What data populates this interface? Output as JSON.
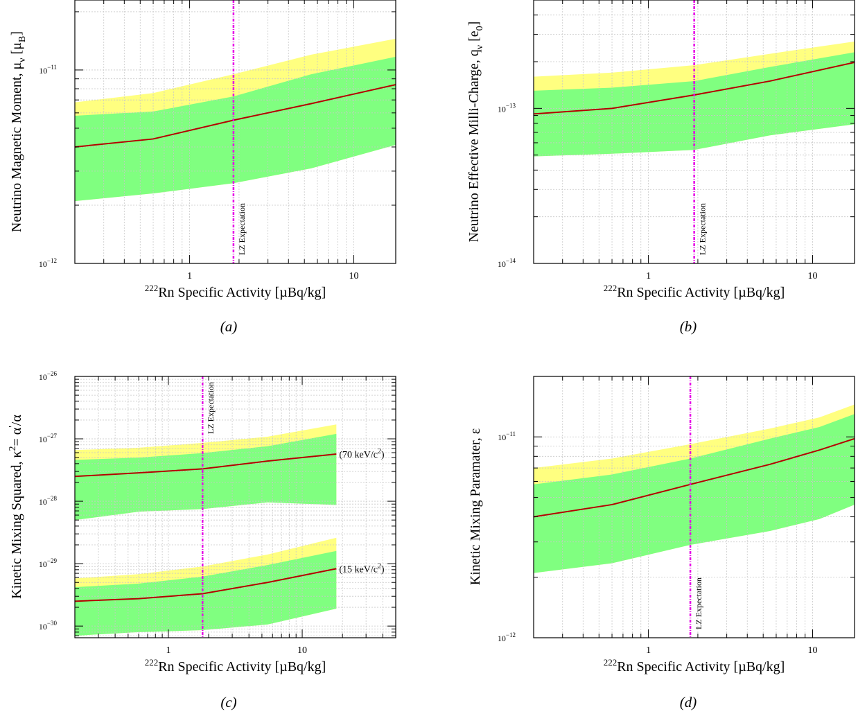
{
  "colors": {
    "yellow_band": "#ffff80",
    "green_band": "#80ff80",
    "median": "#b40000",
    "lz_line": "#e600e6",
    "grid": "#c8c8c8"
  },
  "chart_data": [
    {
      "id": "a",
      "type": "area",
      "caption": "(a)",
      "xlabel_sup": "222",
      "xlabel": "Rn Specific Activity [µBq/kg]",
      "ylabel": "Neutrino Magnetic Moment, μ",
      "ylabel_sub": "ν",
      "ylabel_tail": " [μ",
      "ylabel_tail_sub": "B",
      "ylabel_end": "]",
      "x_scale": "log",
      "y_scale": "log",
      "xlim": [
        0.2,
        18
      ],
      "ylim": [
        1e-12,
        2.3e-11
      ],
      "grid": true,
      "xticks": [
        {
          "v": 1,
          "label": "1"
        },
        {
          "v": 10,
          "label": "10"
        }
      ],
      "yticks": [
        {
          "v": 1e-12,
          "label": "10",
          "sup": "−12"
        },
        {
          "v": 1e-11,
          "label": "10",
          "sup": "−11"
        }
      ],
      "annotation": "LZ Expectation",
      "lz_x": 1.85,
      "bands": [
        {
          "x": [
            0.2,
            0.6,
            1.85,
            5.5,
            18
          ],
          "yellow_upper": [
            6.8e-12,
            7.6e-12,
            9.5e-12,
            1.2e-11,
            1.45e-11
          ],
          "green_upper": [
            5.8e-12,
            6.1e-12,
            7.3e-12,
            9.5e-12,
            1.17e-11
          ],
          "median": [
            4e-12,
            4.4e-12,
            5.5e-12,
            6.7e-12,
            8.4e-12
          ],
          "green_lower": [
            2.1e-12,
            2.3e-12,
            2.6e-12,
            3.1e-12,
            4.1e-12
          ]
        }
      ]
    },
    {
      "id": "b",
      "type": "area",
      "caption": "(b)",
      "xlabel_sup": "222",
      "xlabel": "Rn Specific Activity [µBq/kg]",
      "ylabel": "Neutrino Effective Milli-Charge, q",
      "ylabel_sub": "ν",
      "ylabel_tail": " [e",
      "ylabel_tail_sub": "0",
      "ylabel_end": "]",
      "x_scale": "log",
      "y_scale": "log",
      "xlim": [
        0.2,
        18
      ],
      "ylim": [
        1e-14,
        5e-13
      ],
      "grid": true,
      "xticks": [
        {
          "v": 1,
          "label": "1"
        },
        {
          "v": 10,
          "label": "10"
        }
      ],
      "yticks": [
        {
          "v": 1e-14,
          "label": "10",
          "sup": "−14"
        },
        {
          "v": 1e-13,
          "label": "10",
          "sup": "−13"
        }
      ],
      "annotation": "LZ Expectation",
      "lz_x": 1.9,
      "bands": [
        {
          "x": [
            0.2,
            0.6,
            1.9,
            5.5,
            18
          ],
          "yellow_upper": [
            1.6e-13,
            1.7e-13,
            1.9e-13,
            2.25e-13,
            2.7e-13
          ],
          "green_upper": [
            1.3e-13,
            1.36e-13,
            1.5e-13,
            1.85e-13,
            2.3e-13
          ],
          "median": [
            9.2e-14,
            1e-13,
            1.22e-13,
            1.5e-13,
            1.98e-13
          ],
          "green_lower": [
            4.9e-14,
            5.1e-14,
            5.4e-14,
            6.7e-14,
            7.9e-14
          ]
        }
      ]
    },
    {
      "id": "c",
      "type": "area",
      "caption": "(c)",
      "xlabel_sup": "222",
      "xlabel": "Rn Specific Activity [µBq/kg]",
      "ylabel": "Kinetic Mixing Squared, κ",
      "ylabel_sup": "2",
      "ylabel_tail": "= α",
      "ylabel_tail_sup": "'",
      "ylabel_end": "/α",
      "x_scale": "log",
      "y_scale": "log",
      "xlim": [
        0.2,
        50
      ],
      "ylim": [
        6.5e-31,
        1e-26
      ],
      "grid": true,
      "xticks": [
        {
          "v": 1,
          "label": "1"
        },
        {
          "v": 10,
          "label": "10"
        }
      ],
      "yticks": [
        {
          "v": 1e-30,
          "label": "10",
          "sup": "−30"
        },
        {
          "v": 1e-29,
          "label": "10",
          "sup": "−29"
        },
        {
          "v": 1e-28,
          "label": "10",
          "sup": "−28"
        },
        {
          "v": 1e-27,
          "label": "10",
          "sup": "−27"
        },
        {
          "v": 1e-26,
          "label": "10",
          "sup": "−26"
        }
      ],
      "annotation": "LZ Expectation",
      "lz_x": 1.8,
      "bands": [
        {
          "label": "(70 keV/c",
          "label_sup": "2",
          "label_end": ")",
          "x": [
            0.2,
            0.6,
            1.8,
            5.5,
            18
          ],
          "yellow_upper": [
            6.6e-28,
            7.2e-28,
            8.6e-28,
            1.08e-27,
            1.7e-27
          ],
          "green_upper": [
            4.6e-28,
            5e-28,
            5.9e-28,
            7.6e-28,
            1.2e-27
          ],
          "median": [
            2.5e-28,
            2.85e-28,
            3.3e-28,
            4.4e-28,
            5.7e-28
          ],
          "green_lower": [
            5e-29,
            6.8e-29,
            7.5e-29,
            9.6e-29,
            8.7e-29
          ]
        },
        {
          "label": "(15 keV/c",
          "label_sup": "2",
          "label_end": ")",
          "x": [
            0.2,
            0.6,
            1.8,
            5.5,
            18
          ],
          "yellow_upper": [
            5.8e-30,
            6.8e-30,
            9e-30,
            1.4e-29,
            2.6e-29
          ],
          "green_upper": [
            4.2e-30,
            4.8e-30,
            6.2e-30,
            9.5e-30,
            1.6e-29
          ],
          "median": [
            2.5e-30,
            2.75e-30,
            3.3e-30,
            5e-30,
            8.3e-30
          ],
          "green_lower": [
            7e-31,
            8e-31,
            8.6e-31,
            1.06e-30,
            1.9e-30
          ]
        }
      ]
    },
    {
      "id": "d",
      "type": "area",
      "caption": "(d)",
      "xlabel_sup": "222",
      "xlabel": "Rn Specific Activity [µBq/kg]",
      "ylabel": "Kinetic Mixing Paramater, ε",
      "x_scale": "log",
      "y_scale": "log",
      "xlim": [
        0.2,
        18
      ],
      "ylim": [
        1e-12,
        2e-11
      ],
      "grid": true,
      "xticks": [
        {
          "v": 1,
          "label": "1"
        },
        {
          "v": 10,
          "label": "10"
        }
      ],
      "yticks": [
        {
          "v": 1e-12,
          "label": "10",
          "sup": "−12"
        },
        {
          "v": 1e-11,
          "label": "10",
          "sup": "−11"
        }
      ],
      "annotation": "LZ Expectation",
      "lz_x": 1.8,
      "bands": [
        {
          "x": [
            0.2,
            0.6,
            1.8,
            5.5,
            11,
            18
          ],
          "yellow_upper": [
            7e-12,
            7.8e-12,
            9.2e-12,
            1.1e-11,
            1.25e-11,
            1.45e-11
          ],
          "green_upper": [
            5.8e-12,
            6.5e-12,
            7.8e-12,
            9.8e-12,
            1.12e-11,
            1.3e-11
          ],
          "median": [
            4e-12,
            4.6e-12,
            5.8e-12,
            7.3e-12,
            8.6e-12,
            9.8e-12
          ],
          "green_lower": [
            2.1e-12,
            2.35e-12,
            2.9e-12,
            3.4e-12,
            3.9e-12,
            4.6e-12
          ]
        }
      ]
    }
  ]
}
